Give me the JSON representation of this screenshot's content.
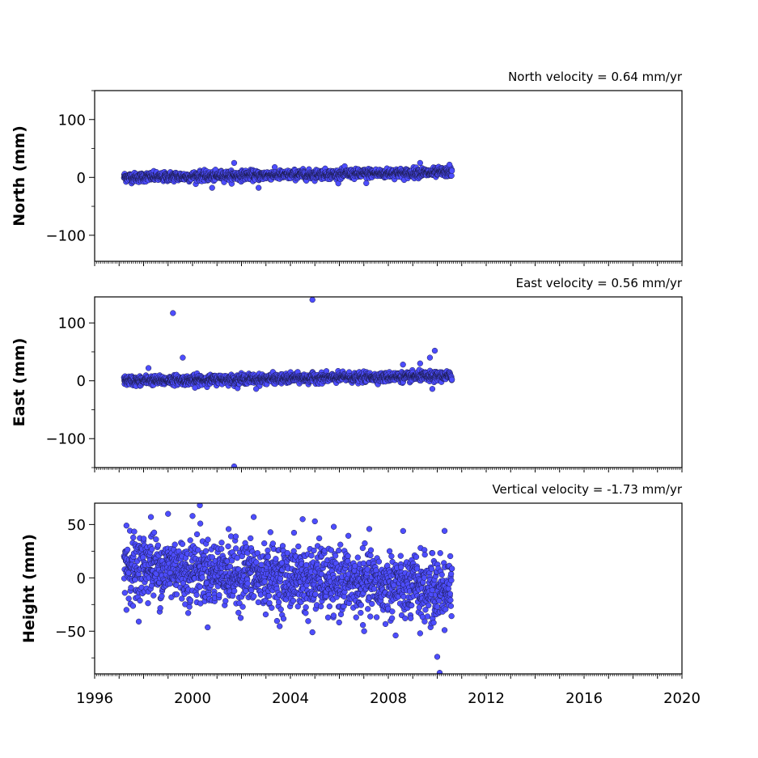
{
  "chart_data": [
    {
      "type": "scatter",
      "title": "North velocity = 0.64 mm/yr",
      "ylabel": "North (mm)",
      "xlim": [
        1996,
        2020
      ],
      "ylim": [
        -145,
        150
      ],
      "yticks": [
        -100,
        0,
        100
      ],
      "ytick_labels": [
        "−100",
        "0",
        "100"
      ],
      "series": [
        {
          "color": "#4d4dff",
          "x_start": 1997.2,
          "x_end": 2010.6,
          "trend_start": 0,
          "trend_end": 9,
          "noise": 4,
          "outliers": [
            [
              2001.7,
              25
            ],
            [
              2000.8,
              -18
            ],
            [
              2002.7,
              -18
            ],
            [
              2009.3,
              25
            ],
            [
              2010.5,
              22
            ],
            [
              2007.1,
              -10
            ]
          ]
        }
      ]
    },
    {
      "type": "scatter",
      "title": "East velocity = 0.56 mm/yr",
      "ylabel": "East (mm)",
      "xlim": [
        1996,
        2020
      ],
      "ylim": [
        -150,
        145
      ],
      "yticks": [
        -100,
        0,
        100
      ],
      "ytick_labels": [
        "−100",
        "0",
        "100"
      ],
      "series": [
        {
          "color": "#4d4dff",
          "x_start": 1997.2,
          "x_end": 2010.6,
          "trend_start": 0,
          "trend_end": 8,
          "noise": 4,
          "outliers": [
            [
              1999.2,
              117
            ],
            [
              1999.6,
              40
            ],
            [
              2004.9,
              140
            ],
            [
              2001.7,
              -148
            ],
            [
              1998.2,
              22
            ],
            [
              2000.1,
              -12
            ],
            [
              2002.6,
              -14
            ],
            [
              2009.9,
              52
            ],
            [
              2009.7,
              40
            ],
            [
              2009.3,
              30
            ],
            [
              2009.8,
              -14
            ],
            [
              2008.6,
              28
            ]
          ]
        }
      ]
    },
    {
      "type": "scatter",
      "title": "Vertical velocity = -1.73 mm/yr",
      "ylabel": "Height (mm)",
      "xlim": [
        1996,
        2020
      ],
      "xticks": [
        1996,
        2000,
        2004,
        2008,
        2012,
        2016,
        2020
      ],
      "xtick_labels": [
        "1996",
        "2000",
        "2004",
        "2008",
        "2012",
        "2016",
        "2020"
      ],
      "ylim": [
        -90,
        70
      ],
      "yticks": [
        -50,
        0,
        50
      ],
      "ytick_labels": [
        "−50",
        "0",
        "50"
      ],
      "series": [
        {
          "color": "#4d4dff",
          "x_start": 1997.2,
          "x_end": 2010.6,
          "trend_start": 12,
          "trend_end": -12,
          "noise": 15,
          "outliers": [
            [
              2000.3,
              68
            ],
            [
              2000.0,
              58
            ],
            [
              1999.0,
              60
            ],
            [
              2002.5,
              57
            ],
            [
              2004.5,
              55
            ],
            [
              2005.0,
              53
            ],
            [
              2010.0,
              -74
            ],
            [
              2010.1,
              -89
            ],
            [
              2008.3,
              -54
            ],
            [
              2004.9,
              -51
            ],
            [
              1997.3,
              -30
            ],
            [
              1997.3,
              49
            ],
            [
              1998.3,
              57
            ],
            [
              2010.3,
              -49
            ],
            [
              2010.3,
              44
            ],
            [
              2009.3,
              -52
            ]
          ]
        }
      ]
    }
  ]
}
